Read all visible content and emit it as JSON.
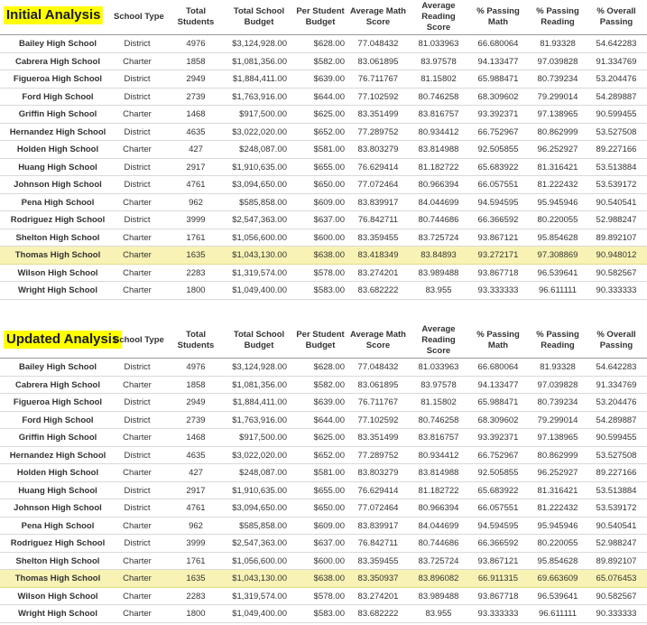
{
  "columns": [
    "School Type",
    "Total Students",
    "Total School Budget",
    "Per Student Budget",
    "Average Math Score",
    "Average Reading Score",
    "% Passing Math",
    "% Passing Reading",
    "% Overall Passing"
  ],
  "highlight_color": "#ffff00",
  "row_highlight_color": "#f8f3b5",
  "initial": {
    "title": "Initial Analysis",
    "rows": [
      [
        "Bailey High School",
        "District",
        "4976",
        "$3,124,928.00",
        "$628.00",
        "77.048432",
        "81.033963",
        "66.680064",
        "81.93328",
        "54.642283"
      ],
      [
        "Cabrera High School",
        "Charter",
        "1858",
        "$1,081,356.00",
        "$582.00",
        "83.061895",
        "83.97578",
        "94.133477",
        "97.039828",
        "91.334769"
      ],
      [
        "Figueroa High School",
        "District",
        "2949",
        "$1,884,411.00",
        "$639.00",
        "76.711767",
        "81.15802",
        "65.988471",
        "80.739234",
        "53.204476"
      ],
      [
        "Ford High School",
        "District",
        "2739",
        "$1,763,916.00",
        "$644.00",
        "77.102592",
        "80.746258",
        "68.309602",
        "79.299014",
        "54.289887"
      ],
      [
        "Griffin High School",
        "Charter",
        "1468",
        "$917,500.00",
        "$625.00",
        "83.351499",
        "83.816757",
        "93.392371",
        "97.138965",
        "90.599455"
      ],
      [
        "Hernandez High School",
        "District",
        "4635",
        "$3,022,020.00",
        "$652.00",
        "77.289752",
        "80.934412",
        "66.752967",
        "80.862999",
        "53.527508"
      ],
      [
        "Holden High School",
        "Charter",
        "427",
        "$248,087.00",
        "$581.00",
        "83.803279",
        "83.814988",
        "92.505855",
        "96.252927",
        "89.227166"
      ],
      [
        "Huang High School",
        "District",
        "2917",
        "$1,910,635.00",
        "$655.00",
        "76.629414",
        "81.182722",
        "65.683922",
        "81.316421",
        "53.513884"
      ],
      [
        "Johnson High School",
        "District",
        "4761",
        "$3,094,650.00",
        "$650.00",
        "77.072464",
        "80.966394",
        "66.057551",
        "81.222432",
        "53.539172"
      ],
      [
        "Pena High School",
        "Charter",
        "962",
        "$585,858.00",
        "$609.00",
        "83.839917",
        "84.044699",
        "94.594595",
        "95.945946",
        "90.540541"
      ],
      [
        "Rodriguez High School",
        "District",
        "3999",
        "$2,547,363.00",
        "$637.00",
        "76.842711",
        "80.744686",
        "66.366592",
        "80.220055",
        "52.988247"
      ],
      [
        "Shelton High School",
        "Charter",
        "1761",
        "$1,056,600.00",
        "$600.00",
        "83.359455",
        "83.725724",
        "93.867121",
        "95.854628",
        "89.892107"
      ],
      [
        "Thomas High School",
        "Charter",
        "1635",
        "$1,043,130.00",
        "$638.00",
        "83.418349",
        "83.84893",
        "93.272171",
        "97.308869",
        "90.948012"
      ],
      [
        "Wilson High School",
        "Charter",
        "2283",
        "$1,319,574.00",
        "$578.00",
        "83.274201",
        "83.989488",
        "93.867718",
        "96.539641",
        "90.582567"
      ],
      [
        "Wright High School",
        "Charter",
        "1800",
        "$1,049,400.00",
        "$583.00",
        "83.682222",
        "83.955",
        "93.333333",
        "96.611111",
        "90.333333"
      ]
    ]
  },
  "updated": {
    "title": "Updated Analysis",
    "rows": [
      [
        "Bailey High School",
        "District",
        "4976",
        "$3,124,928.00",
        "$628.00",
        "77.048432",
        "81.033963",
        "66.680064",
        "81.93328",
        "54.642283"
      ],
      [
        "Cabrera High School",
        "Charter",
        "1858",
        "$1,081,356.00",
        "$582.00",
        "83.061895",
        "83.97578",
        "94.133477",
        "97.039828",
        "91.334769"
      ],
      [
        "Figueroa High School",
        "District",
        "2949",
        "$1,884,411.00",
        "$639.00",
        "76.711767",
        "81.15802",
        "65.988471",
        "80.739234",
        "53.204476"
      ],
      [
        "Ford High School",
        "District",
        "2739",
        "$1,763,916.00",
        "$644.00",
        "77.102592",
        "80.746258",
        "68.309602",
        "79.299014",
        "54.289887"
      ],
      [
        "Griffin High School",
        "Charter",
        "1468",
        "$917,500.00",
        "$625.00",
        "83.351499",
        "83.816757",
        "93.392371",
        "97.138965",
        "90.599455"
      ],
      [
        "Hernandez High School",
        "District",
        "4635",
        "$3,022,020.00",
        "$652.00",
        "77.289752",
        "80.934412",
        "66.752967",
        "80.862999",
        "53.527508"
      ],
      [
        "Holden High School",
        "Charter",
        "427",
        "$248,087.00",
        "$581.00",
        "83.803279",
        "83.814988",
        "92.505855",
        "96.252927",
        "89.227166"
      ],
      [
        "Huang High School",
        "District",
        "2917",
        "$1,910,635.00",
        "$655.00",
        "76.629414",
        "81.182722",
        "65.683922",
        "81.316421",
        "53.513884"
      ],
      [
        "Johnson High School",
        "District",
        "4761",
        "$3,094,650.00",
        "$650.00",
        "77.072464",
        "80.966394",
        "66.057551",
        "81.222432",
        "53.539172"
      ],
      [
        "Pena High School",
        "Charter",
        "962",
        "$585,858.00",
        "$609.00",
        "83.839917",
        "84.044699",
        "94.594595",
        "95.945946",
        "90.540541"
      ],
      [
        "Rodriguez High School",
        "District",
        "3999",
        "$2,547,363.00",
        "$637.00",
        "76.842711",
        "80.744686",
        "66.366592",
        "80.220055",
        "52.988247"
      ],
      [
        "Shelton High School",
        "Charter",
        "1761",
        "$1,056,600.00",
        "$600.00",
        "83.359455",
        "83.725724",
        "93.867121",
        "95.854628",
        "89.892107"
      ],
      [
        "Thomas High School",
        "Charter",
        "1635",
        "$1,043,130.00",
        "$638.00",
        "83.350937",
        "83.896082",
        "66.911315",
        "69.663609",
        "65.076453"
      ],
      [
        "Wilson High School",
        "Charter",
        "2283",
        "$1,319,574.00",
        "$578.00",
        "83.274201",
        "83.989488",
        "93.867718",
        "96.539641",
        "90.582567"
      ],
      [
        "Wright High School",
        "Charter",
        "1800",
        "$1,049,400.00",
        "$583.00",
        "83.682222",
        "83.955",
        "93.333333",
        "96.611111",
        "90.333333"
      ]
    ]
  }
}
